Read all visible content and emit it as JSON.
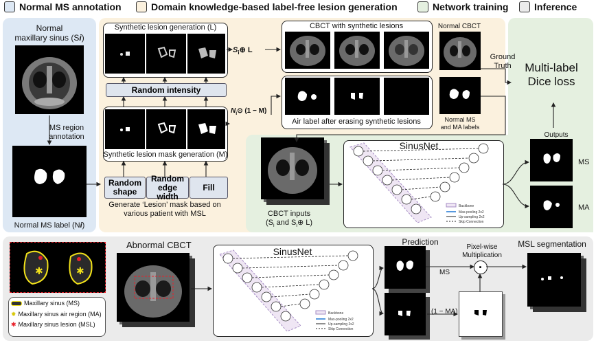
{
  "legend": {
    "normal": {
      "label": "Normal MS annotation",
      "color": "#dde8f4"
    },
    "domain": {
      "label": "Domain knowledge-based label-free lesion generation",
      "color": "#fbf1de"
    },
    "network": {
      "label": "Network training",
      "color": "#e5f0e0"
    },
    "inference": {
      "label": "Inference",
      "color": "#ebebeb"
    }
  },
  "annotation": {
    "title_line1": "Normal",
    "title_line2": "maxillary sinus (S",
    "title_sub": "i",
    "title_tail": ")",
    "region_line1": "MS region",
    "region_line2": "annotation",
    "label_prefix": "Normal MS label (N",
    "label_sub": "i",
    "label_tail": ")"
  },
  "generation": {
    "synth_title": "Synthetic lesion generation (L)",
    "random_intensity": "Random intensity",
    "mask_title": "Synthetic lesion mask generation (M)",
    "btn_shape": "Random shape",
    "btn_edge": "Random edge width",
    "btn_fill": "Fill",
    "caption_line1": "Generate ‘Lesion’ mask based on",
    "caption_line2": "various patient with MSL",
    "op_add": "S",
    "op_add_tail": "⊕ L",
    "op_mul": "N",
    "op_mul_tail": "⊙ (1 − M)"
  },
  "cbct": {
    "title": "CBCT with synthetic lesions",
    "air_label": "Air label after erasing synthetic lesions",
    "normal_cbct": "Normal CBCT",
    "normal_labels_line1": "Normal MS",
    "normal_labels_line2": "and MA labels"
  },
  "training": {
    "ground_truth_line1": "Ground",
    "ground_truth_line2": "Truth",
    "loss_line1": "Multi-label",
    "loss_line2": "Dice loss",
    "outputs": "Outputs",
    "ms": "MS",
    "ma": "MA",
    "net_title": "SinusNet",
    "inputs_line1": "CBCT inputs",
    "inputs_line2": "(S",
    "inputs_mid": " and S",
    "inputs_tail": "⊕ L)"
  },
  "network": {
    "conv": "Conv layer",
    "backbone": "Backbone",
    "maxpool": "Max-pooling 2x2",
    "upsample": "Up-sampling 2x2",
    "skip": "Skip Connection"
  },
  "inference": {
    "abnormal": "Abnormal CBCT",
    "net_title": "SinusNet",
    "prediction": "Prediction",
    "pixelwise_line1": "Pixel-wise",
    "pixelwise_line2": "Multiplication",
    "msl_seg": "MSL segmentation",
    "ms": "MS",
    "one_minus_ma": "(1 − MA)",
    "dot": "·"
  },
  "key": {
    "ms": "Maxillary sinus (MS)",
    "ma": "Maxillary sinus air region (MA)",
    "msl": "Maxillary sinus lesion (MSL)",
    "ms_color": "#f2e21a",
    "msl_color": "#e8202a"
  }
}
